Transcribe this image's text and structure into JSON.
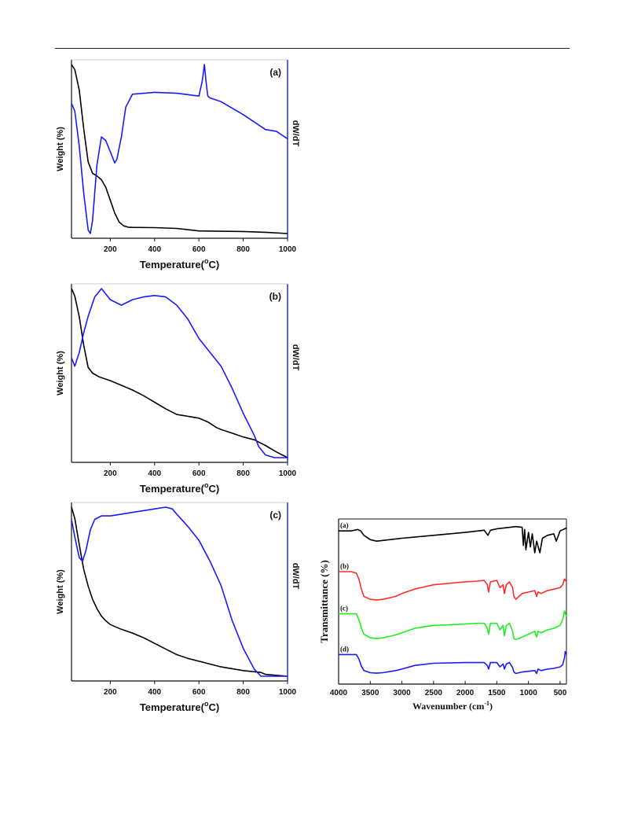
{
  "chart_data": [
    {
      "type": "line",
      "panel_label": "(a)",
      "xlabel": "Temperature(",
      "xlabel_sup": "o",
      "xlabel_end": "C)",
      "ylabel_left": "Weight (%)",
      "ylabel_right": "dW/dT",
      "xlim": [
        25,
        1000
      ],
      "x_ticks": [
        200,
        400,
        600,
        800,
        1000
      ],
      "y_ticks_visible": false,
      "series": [
        {
          "color": "#000000",
          "axis": "left",
          "x": [
            25,
            40,
            60,
            80,
            100,
            120,
            140,
            160,
            180,
            200,
            220,
            240,
            260,
            280,
            300,
            400,
            500,
            550,
            600,
            700,
            800,
            900,
            1000
          ],
          "y": [
            100,
            98,
            90,
            75,
            62,
            57.5,
            56.5,
            55,
            52,
            47,
            42,
            38.5,
            37,
            36.5,
            36.4,
            36.3,
            36,
            35.5,
            35,
            34.9,
            34.8,
            34.5,
            34
          ]
        },
        {
          "color": "#1a1aff",
          "axis": "right",
          "x": [
            25,
            40,
            60,
            80,
            100,
            110,
            120,
            140,
            160,
            180,
            200,
            220,
            230,
            250,
            270,
            300,
            400,
            500,
            600,
            615,
            625,
            632,
            640,
            650,
            700,
            800,
            850,
            900,
            950,
            1000
          ],
          "y": [
            78,
            74,
            55,
            30,
            10,
            8,
            15,
            45,
            60,
            58,
            52,
            46,
            48,
            60,
            76,
            83,
            84,
            83.5,
            82,
            90,
            99,
            90,
            82,
            81,
            79,
            72,
            68,
            64,
            63,
            59
          ]
        }
      ]
    },
    {
      "type": "line",
      "panel_label": "(b)",
      "xlabel": "Temperature(",
      "xlabel_sup": "o",
      "xlabel_end": "C)",
      "ylabel_left": "Weight (%)",
      "ylabel_right": "dW/dT",
      "xlim": [
        25,
        1000
      ],
      "x_ticks": [
        200,
        400,
        600,
        800,
        1000
      ],
      "y_ticks_visible": false,
      "series": [
        {
          "color": "#000000",
          "axis": "left",
          "x": [
            25,
            40,
            60,
            80,
            100,
            120,
            150,
            200,
            250,
            300,
            350,
            400,
            450,
            500,
            550,
            600,
            640,
            680,
            700,
            750,
            800,
            850,
            900,
            950,
            1000
          ],
          "y": [
            100,
            96,
            85,
            70,
            58,
            55,
            53,
            51,
            48.5,
            46,
            43,
            39.5,
            36,
            33,
            32,
            31,
            29,
            26,
            25,
            23,
            21,
            19.5,
            16.5,
            13,
            10
          ]
        },
        {
          "color": "#1a1aff",
          "axis": "right",
          "x": [
            25,
            40,
            60,
            80,
            100,
            130,
            160,
            180,
            200,
            250,
            300,
            350,
            400,
            450,
            500,
            550,
            600,
            650,
            700,
            750,
            800,
            850,
            870,
            900,
            940,
            970,
            1000
          ],
          "y": [
            38,
            35,
            40,
            47,
            53,
            60,
            63,
            61,
            59,
            57,
            59,
            60,
            60.5,
            60,
            57,
            52,
            45,
            40,
            35,
            27,
            18,
            10,
            6,
            3,
            2,
            2,
            2
          ]
        }
      ]
    },
    {
      "type": "line",
      "panel_label": "(c)",
      "xlabel": "Temperature(",
      "xlabel_sup": "o",
      "xlabel_end": "C)",
      "ylabel_left": "Weight (%)",
      "ylabel_right": "dW/dT",
      "xlim": [
        25,
        1000
      ],
      "x_ticks": [
        200,
        400,
        600,
        800,
        1000
      ],
      "y_ticks_visible": false,
      "series": [
        {
          "color": "#000000",
          "axis": "left",
          "x": [
            25,
            40,
            60,
            80,
            100,
            120,
            140,
            160,
            180,
            200,
            250,
            300,
            350,
            400,
            450,
            500,
            550,
            600,
            700,
            800,
            880,
            900,
            950,
            1000
          ],
          "y": [
            100,
            94,
            80,
            67,
            58,
            51,
            46,
            42,
            39.5,
            37.5,
            35,
            33,
            30.5,
            27.5,
            24.5,
            21.5,
            19.5,
            18,
            15,
            13,
            12,
            11,
            10.5,
            10
          ]
        },
        {
          "color": "#1a1aff",
          "axis": "right",
          "x": [
            25,
            40,
            60,
            75,
            90,
            110,
            130,
            160,
            200,
            250,
            300,
            350,
            400,
            450,
            480,
            500,
            550,
            600,
            650,
            700,
            750,
            800,
            850,
            880,
            920,
            1000
          ],
          "y": [
            95,
            90,
            84,
            83,
            86,
            92,
            95,
            96,
            96,
            96.5,
            97,
            97.5,
            98,
            98.5,
            98,
            96.5,
            93,
            89,
            83,
            76,
            66,
            58,
            52,
            50,
            50,
            50
          ]
        }
      ]
    },
    {
      "type": "line",
      "ylabel": "Transmittance (%)",
      "xlabel": "Wavenumber (cm",
      "xlabel_sup": "-1",
      "xlabel_end": ")",
      "xlim": [
        4000,
        400
      ],
      "x_ticks": [
        4000,
        3500,
        3000,
        2500,
        2000,
        1500,
        1000,
        500
      ],
      "y_ticks_visible": false,
      "series": [
        {
          "name": "(a)",
          "color": "#000000",
          "x": [
            4000,
            3800,
            3700,
            3650,
            3600,
            3500,
            3400,
            3300,
            3000,
            2500,
            2000,
            1700,
            1640,
            1600,
            1500,
            1200,
            1100,
            1080,
            1060,
            1040,
            1000,
            970,
            940,
            900,
            870,
            820,
            780,
            700,
            600,
            560,
            500,
            450,
            400
          ],
          "y": [
            95,
            95,
            96,
            95,
            92,
            89,
            88,
            88.5,
            90,
            92,
            94,
            95.5,
            92,
            95.5,
            96.5,
            98,
            97.5,
            85,
            96,
            82,
            94,
            84,
            93,
            80,
            88,
            80,
            90,
            92,
            93,
            88,
            95,
            96,
            97
          ]
        },
        {
          "name": "(b)",
          "color": "#ff2b2b",
          "x": [
            4000,
            3800,
            3720,
            3680,
            3640,
            3600,
            3500,
            3400,
            3300,
            3100,
            3000,
            2800,
            2600,
            2500,
            2000,
            1800,
            1700,
            1650,
            1630,
            1600,
            1500,
            1450,
            1400,
            1380,
            1350,
            1300,
            1250,
            1230,
            1200,
            1150,
            1100,
            1000,
            900,
            870,
            850,
            800,
            700,
            600,
            500,
            460,
            430,
            400
          ],
          "y": [
            67,
            67,
            66,
            62,
            55,
            50,
            48,
            47.5,
            48,
            50,
            52,
            55,
            57,
            58,
            60,
            60.5,
            61,
            58,
            53,
            60,
            61,
            56,
            58,
            52,
            58,
            60,
            56,
            50,
            48,
            50,
            52,
            53,
            54,
            50,
            53,
            52,
            54,
            55,
            56,
            58,
            62,
            60
          ]
        },
        {
          "name": "(c)",
          "color": "#22ee22",
          "x": [
            4000,
            3800,
            3720,
            3680,
            3640,
            3600,
            3500,
            3400,
            3300,
            3100,
            3000,
            2800,
            2600,
            2500,
            2000,
            1800,
            1700,
            1650,
            1630,
            1600,
            1500,
            1450,
            1400,
            1380,
            1350,
            1300,
            1250,
            1230,
            1200,
            1150,
            1100,
            1000,
            900,
            870,
            850,
            800,
            700,
            600,
            500,
            460,
            430,
            400
          ],
          "y": [
            38,
            38,
            38,
            34,
            28,
            24,
            21.5,
            21,
            21.5,
            23.5,
            25,
            28,
            29.5,
            30,
            31,
            31.5,
            31.5,
            28,
            24,
            31.5,
            31.5,
            27,
            30,
            23,
            30,
            31.5,
            26,
            21,
            20.5,
            21,
            22,
            24,
            26,
            22,
            26,
            25,
            27,
            28,
            30,
            34,
            40,
            36
          ]
        },
        {
          "name": "(d)",
          "color": "#1a1aff",
          "x": [
            4000,
            3800,
            3720,
            3680,
            3640,
            3600,
            3500,
            3400,
            3300,
            3100,
            3000,
            2800,
            2600,
            2500,
            2000,
            1800,
            1700,
            1650,
            1630,
            1600,
            1500,
            1450,
            1400,
            1380,
            1350,
            1300,
            1250,
            1230,
            1200,
            1150,
            1100,
            1000,
            900,
            870,
            850,
            800,
            700,
            600,
            500,
            460,
            430,
            420,
            400
          ],
          "y": [
            10,
            10,
            10,
            7,
            2,
            -1,
            -2.5,
            -2.8,
            -2.5,
            -1,
            0,
            2.5,
            3.5,
            4,
            4.5,
            4.5,
            4.5,
            2.5,
            0,
            4.5,
            4.5,
            1.5,
            3.5,
            0,
            3.5,
            4.5,
            1,
            -2,
            -3,
            -2.5,
            -2,
            -1.5,
            -1,
            -3,
            0,
            -1,
            0,
            0.5,
            1.5,
            3,
            8,
            12,
            10
          ]
        }
      ]
    }
  ]
}
